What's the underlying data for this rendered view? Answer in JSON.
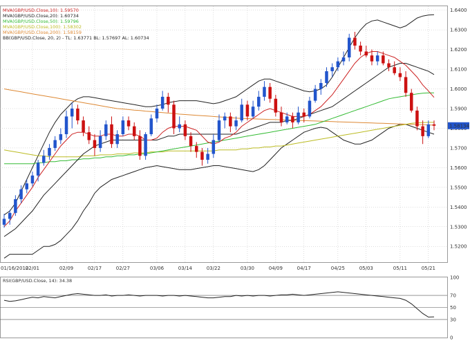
{
  "chart_data": [
    {
      "type": "candlestick",
      "name": "GBP/USD",
      "ylim": [
        1.512,
        1.642
      ],
      "y_ticks": [
        "1.6400",
        "1.6300",
        "1.6200",
        "1.6100",
        "1.6000",
        "1.5900",
        "1.5800",
        "1.5700",
        "1.5600",
        "1.5500",
        "1.5400",
        "1.5300",
        "1.5200"
      ],
      "x_tick_labels": [
        "01/16/2012",
        "02/01",
        "02/09",
        "02/17",
        "02/27",
        "03/06",
        "03/14",
        "03/22",
        "03/30",
        "04/09",
        "04/17",
        "04/25",
        "05/03",
        "05/11",
        "05/21"
      ],
      "last_price_label": "1.58134",
      "legend": [
        {
          "text": "MVA(GBP/USD.Close,10): 1.59570",
          "color": "#cc2222"
        },
        {
          "text": "MVA(GBP/USD.Close,20): 1.60734",
          "color": "#222222"
        },
        {
          "text": "MVA(GBP/USD.Close,50): 1.59796",
          "color": "#33bb33"
        },
        {
          "text": "MVA(GBP/USD.Close,100): 1.58302",
          "color": "#bbbb22"
        },
        {
          "text": "MVA(GBP/USD.Close,200): 1.58159",
          "color": "#dd8833"
        },
        {
          "text": "BB(GBP/USD.Close, 20, 2) -  TL: 1.63771  BL: 1.57697  AL: 1.60734",
          "color": "#222222"
        }
      ],
      "colors": {
        "up": "#2255cc",
        "down": "#cc1111",
        "ma10": "#cc2222",
        "ma20": "#222222",
        "ma50": "#33bb33",
        "ma100": "#bbbb22",
        "ma200": "#dd8833",
        "bb": "#222222",
        "grid": "#bbbbbb",
        "price_box": "#2255cc"
      },
      "candles": [
        {
          "o": 1.531,
          "h": 1.5365,
          "l": 1.5295,
          "c": 1.534
        },
        {
          "o": 1.534,
          "h": 1.5385,
          "l": 1.531,
          "c": 1.537
        },
        {
          "o": 1.537,
          "h": 1.546,
          "l": 1.5355,
          "c": 1.544
        },
        {
          "o": 1.544,
          "h": 1.551,
          "l": 1.542,
          "c": 1.549
        },
        {
          "o": 1.549,
          "h": 1.554,
          "l": 1.547,
          "c": 1.552
        },
        {
          "o": 1.552,
          "h": 1.558,
          "l": 1.5505,
          "c": 1.556
        },
        {
          "o": 1.556,
          "h": 1.564,
          "l": 1.553,
          "c": 1.5625
        },
        {
          "o": 1.5625,
          "h": 1.569,
          "l": 1.561,
          "c": 1.566
        },
        {
          "o": 1.566,
          "h": 1.572,
          "l": 1.564,
          "c": 1.57
        },
        {
          "o": 1.57,
          "h": 1.576,
          "l": 1.5685,
          "c": 1.574
        },
        {
          "o": 1.574,
          "h": 1.58,
          "l": 1.572,
          "c": 1.577
        },
        {
          "o": 1.577,
          "h": 1.589,
          "l": 1.575,
          "c": 1.586
        },
        {
          "o": 1.586,
          "h": 1.593,
          "l": 1.58,
          "c": 1.59
        },
        {
          "o": 1.59,
          "h": 1.592,
          "l": 1.582,
          "c": 1.584
        },
        {
          "o": 1.584,
          "h": 1.586,
          "l": 1.576,
          "c": 1.578
        },
        {
          "o": 1.578,
          "h": 1.581,
          "l": 1.572,
          "c": 1.574
        },
        {
          "o": 1.574,
          "h": 1.577,
          "l": 1.566,
          "c": 1.57
        },
        {
          "o": 1.57,
          "h": 1.579,
          "l": 1.568,
          "c": 1.576
        },
        {
          "o": 1.576,
          "h": 1.584,
          "l": 1.574,
          "c": 1.582
        },
        {
          "o": 1.582,
          "h": 1.586,
          "l": 1.57,
          "c": 1.572
        },
        {
          "o": 1.572,
          "h": 1.579,
          "l": 1.57,
          "c": 1.577
        },
        {
          "o": 1.577,
          "h": 1.586,
          "l": 1.576,
          "c": 1.584
        },
        {
          "o": 1.584,
          "h": 1.586,
          "l": 1.579,
          "c": 1.581
        },
        {
          "o": 1.581,
          "h": 1.583,
          "l": 1.574,
          "c": 1.576
        },
        {
          "o": 1.576,
          "h": 1.579,
          "l": 1.564,
          "c": 1.566
        },
        {
          "o": 1.566,
          "h": 1.578,
          "l": 1.564,
          "c": 1.577
        },
        {
          "o": 1.577,
          "h": 1.587,
          "l": 1.576,
          "c": 1.585
        },
        {
          "o": 1.585,
          "h": 1.592,
          "l": 1.583,
          "c": 1.59
        },
        {
          "o": 1.59,
          "h": 1.599,
          "l": 1.589,
          "c": 1.596
        },
        {
          "o": 1.596,
          "h": 1.598,
          "l": 1.588,
          "c": 1.592
        },
        {
          "o": 1.592,
          "h": 1.594,
          "l": 1.577,
          "c": 1.58
        },
        {
          "o": 1.58,
          "h": 1.586,
          "l": 1.578,
          "c": 1.582
        },
        {
          "o": 1.582,
          "h": 1.584,
          "l": 1.574,
          "c": 1.576
        },
        {
          "o": 1.576,
          "h": 1.578,
          "l": 1.568,
          "c": 1.571
        },
        {
          "o": 1.571,
          "h": 1.573,
          "l": 1.565,
          "c": 1.568
        },
        {
          "o": 1.568,
          "h": 1.57,
          "l": 1.561,
          "c": 1.564
        },
        {
          "o": 1.564,
          "h": 1.57,
          "l": 1.562,
          "c": 1.567
        },
        {
          "o": 1.567,
          "h": 1.577,
          "l": 1.565,
          "c": 1.574
        },
        {
          "o": 1.574,
          "h": 1.587,
          "l": 1.573,
          "c": 1.584
        },
        {
          "o": 1.584,
          "h": 1.588,
          "l": 1.58,
          "c": 1.586
        },
        {
          "o": 1.586,
          "h": 1.588,
          "l": 1.578,
          "c": 1.581
        },
        {
          "o": 1.581,
          "h": 1.586,
          "l": 1.579,
          "c": 1.584
        },
        {
          "o": 1.584,
          "h": 1.595,
          "l": 1.583,
          "c": 1.592
        },
        {
          "o": 1.592,
          "h": 1.594,
          "l": 1.584,
          "c": 1.586
        },
        {
          "o": 1.586,
          "h": 1.594,
          "l": 1.585,
          "c": 1.591
        },
        {
          "o": 1.591,
          "h": 1.599,
          "l": 1.589,
          "c": 1.596
        },
        {
          "o": 1.596,
          "h": 1.604,
          "l": 1.594,
          "c": 1.601
        },
        {
          "o": 1.601,
          "h": 1.603,
          "l": 1.593,
          "c": 1.595
        },
        {
          "o": 1.595,
          "h": 1.597,
          "l": 1.586,
          "c": 1.588
        },
        {
          "o": 1.588,
          "h": 1.591,
          "l": 1.581,
          "c": 1.583
        },
        {
          "o": 1.583,
          "h": 1.588,
          "l": 1.582,
          "c": 1.586
        },
        {
          "o": 1.586,
          "h": 1.588,
          "l": 1.58,
          "c": 1.583
        },
        {
          "o": 1.583,
          "h": 1.591,
          "l": 1.582,
          "c": 1.588
        },
        {
          "o": 1.588,
          "h": 1.59,
          "l": 1.583,
          "c": 1.586
        },
        {
          "o": 1.586,
          "h": 1.596,
          "l": 1.585,
          "c": 1.594
        },
        {
          "o": 1.594,
          "h": 1.602,
          "l": 1.593,
          "c": 1.6
        },
        {
          "o": 1.6,
          "h": 1.605,
          "l": 1.597,
          "c": 1.603
        },
        {
          "o": 1.603,
          "h": 1.611,
          "l": 1.601,
          "c": 1.609
        },
        {
          "o": 1.609,
          "h": 1.613,
          "l": 1.606,
          "c": 1.611
        },
        {
          "o": 1.611,
          "h": 1.616,
          "l": 1.609,
          "c": 1.614
        },
        {
          "o": 1.614,
          "h": 1.619,
          "l": 1.612,
          "c": 1.616
        },
        {
          "o": 1.616,
          "h": 1.628,
          "l": 1.614,
          "c": 1.626
        },
        {
          "o": 1.626,
          "h": 1.629,
          "l": 1.62,
          "c": 1.622
        },
        {
          "o": 1.622,
          "h": 1.624,
          "l": 1.617,
          "c": 1.619
        },
        {
          "o": 1.619,
          "h": 1.622,
          "l": 1.616,
          "c": 1.617
        },
        {
          "o": 1.617,
          "h": 1.62,
          "l": 1.612,
          "c": 1.614
        },
        {
          "o": 1.614,
          "h": 1.619,
          "l": 1.612,
          "c": 1.617
        },
        {
          "o": 1.617,
          "h": 1.619,
          "l": 1.612,
          "c": 1.613
        },
        {
          "o": 1.613,
          "h": 1.615,
          "l": 1.609,
          "c": 1.611
        },
        {
          "o": 1.611,
          "h": 1.614,
          "l": 1.607,
          "c": 1.608
        },
        {
          "o": 1.608,
          "h": 1.611,
          "l": 1.604,
          "c": 1.606
        },
        {
          "o": 1.606,
          "h": 1.609,
          "l": 1.596,
          "c": 1.598
        },
        {
          "o": 1.598,
          "h": 1.6,
          "l": 1.588,
          "c": 1.589
        },
        {
          "o": 1.589,
          "h": 1.591,
          "l": 1.579,
          "c": 1.581
        },
        {
          "o": 1.581,
          "h": 1.584,
          "l": 1.572,
          "c": 1.576
        },
        {
          "o": 1.576,
          "h": 1.584,
          "l": 1.575,
          "c": 1.582
        },
        {
          "o": 1.582,
          "h": 1.584,
          "l": 1.579,
          "c": 1.5813
        }
      ],
      "ma10": [
        1.53,
        1.533,
        1.538,
        1.542,
        1.546,
        1.55,
        1.555,
        1.559,
        1.563,
        1.567,
        1.571,
        1.574,
        1.577,
        1.578,
        1.578,
        1.577,
        1.576,
        1.576,
        1.577,
        1.577,
        1.576,
        1.576,
        1.577,
        1.577,
        1.576,
        1.574,
        1.574,
        1.575,
        1.578,
        1.58,
        1.581,
        1.581,
        1.581,
        1.58,
        1.579,
        1.576,
        1.573,
        1.572,
        1.573,
        1.575,
        1.576,
        1.578,
        1.581,
        1.583,
        1.585,
        1.587,
        1.589,
        1.59,
        1.589,
        1.588,
        1.587,
        1.586,
        1.586,
        1.586,
        1.587,
        1.589,
        1.591,
        1.594,
        1.597,
        1.601,
        1.605,
        1.609,
        1.613,
        1.616,
        1.618,
        1.619,
        1.619,
        1.618,
        1.617,
        1.616,
        1.614,
        1.612,
        1.609,
        1.606,
        1.602,
        1.599,
        1.5957
      ],
      "ma20": [
        1.525,
        1.527,
        1.529,
        1.532,
        1.535,
        1.538,
        1.542,
        1.546,
        1.549,
        1.552,
        1.555,
        1.558,
        1.561,
        1.564,
        1.567,
        1.569,
        1.571,
        1.572,
        1.573,
        1.574,
        1.574,
        1.574,
        1.574,
        1.574,
        1.574,
        1.574,
        1.574,
        1.574,
        1.575,
        1.576,
        1.576,
        1.577,
        1.577,
        1.577,
        1.577,
        1.577,
        1.577,
        1.577,
        1.577,
        1.577,
        1.577,
        1.577,
        1.578,
        1.579,
        1.58,
        1.581,
        1.582,
        1.583,
        1.583,
        1.583,
        1.584,
        1.584,
        1.585,
        1.586,
        1.587,
        1.588,
        1.589,
        1.59,
        1.591,
        1.593,
        1.595,
        1.597,
        1.599,
        1.601,
        1.603,
        1.605,
        1.607,
        1.609,
        1.611,
        1.612,
        1.613,
        1.613,
        1.612,
        1.611,
        1.61,
        1.609,
        1.6073
      ],
      "ma50": [
        1.562,
        1.562,
        1.562,
        1.562,
        1.562,
        1.562,
        1.5625,
        1.5625,
        1.563,
        1.563,
        1.5635,
        1.5635,
        1.564,
        1.564,
        1.5645,
        1.5645,
        1.565,
        1.565,
        1.5655,
        1.5655,
        1.566,
        1.566,
        1.5665,
        1.5665,
        1.567,
        1.567,
        1.5675,
        1.568,
        1.5685,
        1.569,
        1.5695,
        1.57,
        1.5705,
        1.571,
        1.5715,
        1.572,
        1.5725,
        1.573,
        1.5735,
        1.574,
        1.5745,
        1.575,
        1.5755,
        1.576,
        1.5765,
        1.577,
        1.5775,
        1.578,
        1.5785,
        1.579,
        1.5795,
        1.58,
        1.5805,
        1.581,
        1.5815,
        1.582,
        1.583,
        1.584,
        1.585,
        1.586,
        1.587,
        1.588,
        1.589,
        1.59,
        1.591,
        1.592,
        1.593,
        1.594,
        1.595,
        1.5955,
        1.596,
        1.5965,
        1.597,
        1.5975,
        1.5978,
        1.598,
        1.598
      ],
      "ma100": [
        1.569,
        1.5685,
        1.568,
        1.5675,
        1.567,
        1.5665,
        1.566,
        1.566,
        1.5655,
        1.5655,
        1.5655,
        1.5655,
        1.5655,
        1.5655,
        1.566,
        1.566,
        1.566,
        1.5665,
        1.5665,
        1.5665,
        1.567,
        1.567,
        1.567,
        1.5675,
        1.5675,
        1.5675,
        1.568,
        1.568,
        1.568,
        1.5685,
        1.5685,
        1.5685,
        1.5685,
        1.5685,
        1.5685,
        1.5685,
        1.5685,
        1.5685,
        1.569,
        1.569,
        1.569,
        1.569,
        1.5695,
        1.5695,
        1.57,
        1.57,
        1.5705,
        1.5705,
        1.571,
        1.571,
        1.5715,
        1.572,
        1.5725,
        1.573,
        1.5735,
        1.574,
        1.5745,
        1.575,
        1.5755,
        1.576,
        1.5765,
        1.577,
        1.5775,
        1.578,
        1.5785,
        1.579,
        1.5795,
        1.58,
        1.5805,
        1.581,
        1.5815,
        1.582,
        1.5825,
        1.5828,
        1.5829,
        1.583,
        1.583
      ],
      "ma200": [
        1.6,
        1.5995,
        1.599,
        1.5985,
        1.598,
        1.5975,
        1.597,
        1.5965,
        1.596,
        1.5955,
        1.595,
        1.5945,
        1.594,
        1.5935,
        1.593,
        1.5925,
        1.592,
        1.5915,
        1.591,
        1.5905,
        1.59,
        1.5898,
        1.5895,
        1.5892,
        1.589,
        1.5887,
        1.5885,
        1.5882,
        1.588,
        1.5877,
        1.5875,
        1.5872,
        1.587,
        1.5868,
        1.5866,
        1.5864,
        1.5862,
        1.586,
        1.5858,
        1.5856,
        1.5854,
        1.5852,
        1.585,
        1.5849,
        1.5848,
        1.5847,
        1.5846,
        1.5845,
        1.5844,
        1.5843,
        1.5842,
        1.5841,
        1.584,
        1.5839,
        1.5838,
        1.5837,
        1.5836,
        1.5835,
        1.5834,
        1.5833,
        1.5832,
        1.5831,
        1.583,
        1.5829,
        1.5828,
        1.5827,
        1.5826,
        1.5825,
        1.5824,
        1.5823,
        1.5822,
        1.5821,
        1.582,
        1.5819,
        1.5818,
        1.5817,
        1.5816
      ],
      "bb_upper": [
        1.536,
        1.538,
        1.542,
        1.548,
        1.554,
        1.56,
        1.566,
        1.572,
        1.578,
        1.583,
        1.587,
        1.59,
        1.593,
        1.595,
        1.596,
        1.596,
        1.5955,
        1.595,
        1.5945,
        1.594,
        1.5935,
        1.593,
        1.5925,
        1.592,
        1.5915,
        1.591,
        1.591,
        1.5915,
        1.592,
        1.593,
        1.5935,
        1.594,
        1.594,
        1.594,
        1.594,
        1.5935,
        1.593,
        1.5925,
        1.593,
        1.594,
        1.595,
        1.596,
        1.598,
        1.6,
        1.602,
        1.604,
        1.605,
        1.605,
        1.604,
        1.603,
        1.602,
        1.601,
        1.6,
        1.599,
        1.5985,
        1.599,
        1.6,
        1.602,
        1.606,
        1.611,
        1.616,
        1.621,
        1.626,
        1.63,
        1.633,
        1.6345,
        1.635,
        1.634,
        1.633,
        1.632,
        1.631,
        1.632,
        1.634,
        1.636,
        1.637,
        1.6375,
        1.6377
      ],
      "bb_lower": [
        1.514,
        1.516,
        1.516,
        1.516,
        1.516,
        1.516,
        1.518,
        1.52,
        1.52,
        1.521,
        1.523,
        1.526,
        1.529,
        1.533,
        1.538,
        1.542,
        1.547,
        1.55,
        1.552,
        1.554,
        1.555,
        1.556,
        1.557,
        1.558,
        1.559,
        1.56,
        1.5605,
        1.561,
        1.5605,
        1.56,
        1.5595,
        1.559,
        1.559,
        1.559,
        1.5595,
        1.56,
        1.5605,
        1.561,
        1.561,
        1.5605,
        1.56,
        1.5595,
        1.559,
        1.5585,
        1.558,
        1.559,
        1.561,
        1.564,
        1.567,
        1.57,
        1.572,
        1.574,
        1.576,
        1.578,
        1.579,
        1.58,
        1.5805,
        1.58,
        1.578,
        1.576,
        1.574,
        1.573,
        1.572,
        1.572,
        1.573,
        1.574,
        1.576,
        1.578,
        1.58,
        1.581,
        1.582,
        1.582,
        1.581,
        1.58,
        1.579,
        1.578,
        1.577
      ]
    },
    {
      "type": "line",
      "name": "RSI",
      "label": "RSI(GBP/USD.Close, 14): 34.38",
      "ylim": [
        0,
        100
      ],
      "y_ticks": [
        "100",
        "70",
        "50",
        "30",
        "0"
      ],
      "reference_lines": [
        70,
        50,
        30
      ],
      "color": "#222222",
      "values": [
        62,
        60,
        61,
        63,
        65,
        67,
        66,
        68,
        67,
        66,
        68,
        70,
        72,
        73,
        72,
        71,
        70,
        70,
        71,
        69,
        70,
        70,
        71,
        70,
        69,
        70,
        70,
        70,
        69,
        70,
        70,
        69,
        70,
        69,
        68,
        67,
        66,
        66,
        67,
        68,
        68,
        70,
        69,
        70,
        69,
        70,
        70,
        69,
        70,
        71,
        71,
        72,
        71,
        70,
        71,
        72,
        73,
        74,
        75,
        76,
        75,
        74,
        73,
        72,
        71,
        70,
        69,
        68,
        67,
        66,
        65,
        62,
        56,
        48,
        40,
        34,
        34.38
      ]
    }
  ]
}
